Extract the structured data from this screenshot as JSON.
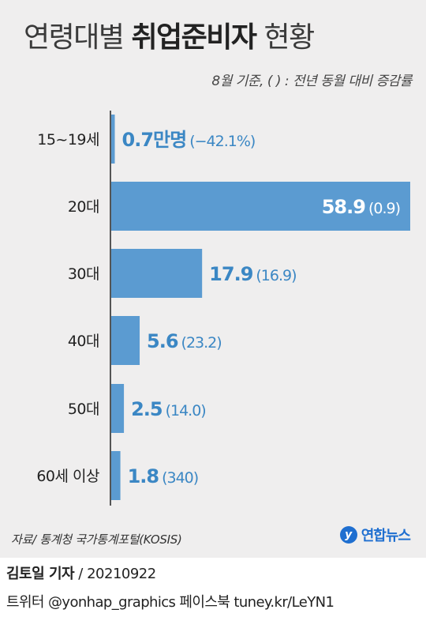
{
  "header": {
    "title_normal_1": "연령대별 ",
    "title_bold": "취업준비자",
    "title_normal_2": " 현황",
    "subtitle": "8월 기준, ( ) : 전년 동월 대비 증감률"
  },
  "chart_data": {
    "type": "bar",
    "orientation": "horizontal",
    "unit": "만명",
    "categories": [
      "15~19세",
      "20대",
      "30대",
      "40대",
      "50대",
      "60세 이상"
    ],
    "values": [
      0.7,
      58.9,
      17.9,
      5.6,
      2.5,
      1.8
    ],
    "value_labels": [
      "0.7만명",
      "58.9",
      "17.9",
      "5.6",
      "2.5",
      "1.8"
    ],
    "change_labels": [
      "(−42.1%)",
      "(0.9)",
      "(16.9)",
      "(23.2)",
      "(14.0)",
      "(340)"
    ],
    "xlim": [
      0,
      58.9
    ],
    "grid": false,
    "colors": {
      "bar": "#5b9bd1",
      "label": "#3b87c4",
      "label_inside": "#ffffff",
      "axis": "#222222"
    }
  },
  "footer": {
    "source": "자료/ 통계청 국가통계포털(KOSIS)",
    "logo_text": "연합뉴스",
    "logo_mark": "y",
    "reporter": "김토일 기자",
    "date": " / 20210922",
    "social": "트위터 @yonhap_graphics  페이스북 tuney.kr/LeYN1"
  }
}
